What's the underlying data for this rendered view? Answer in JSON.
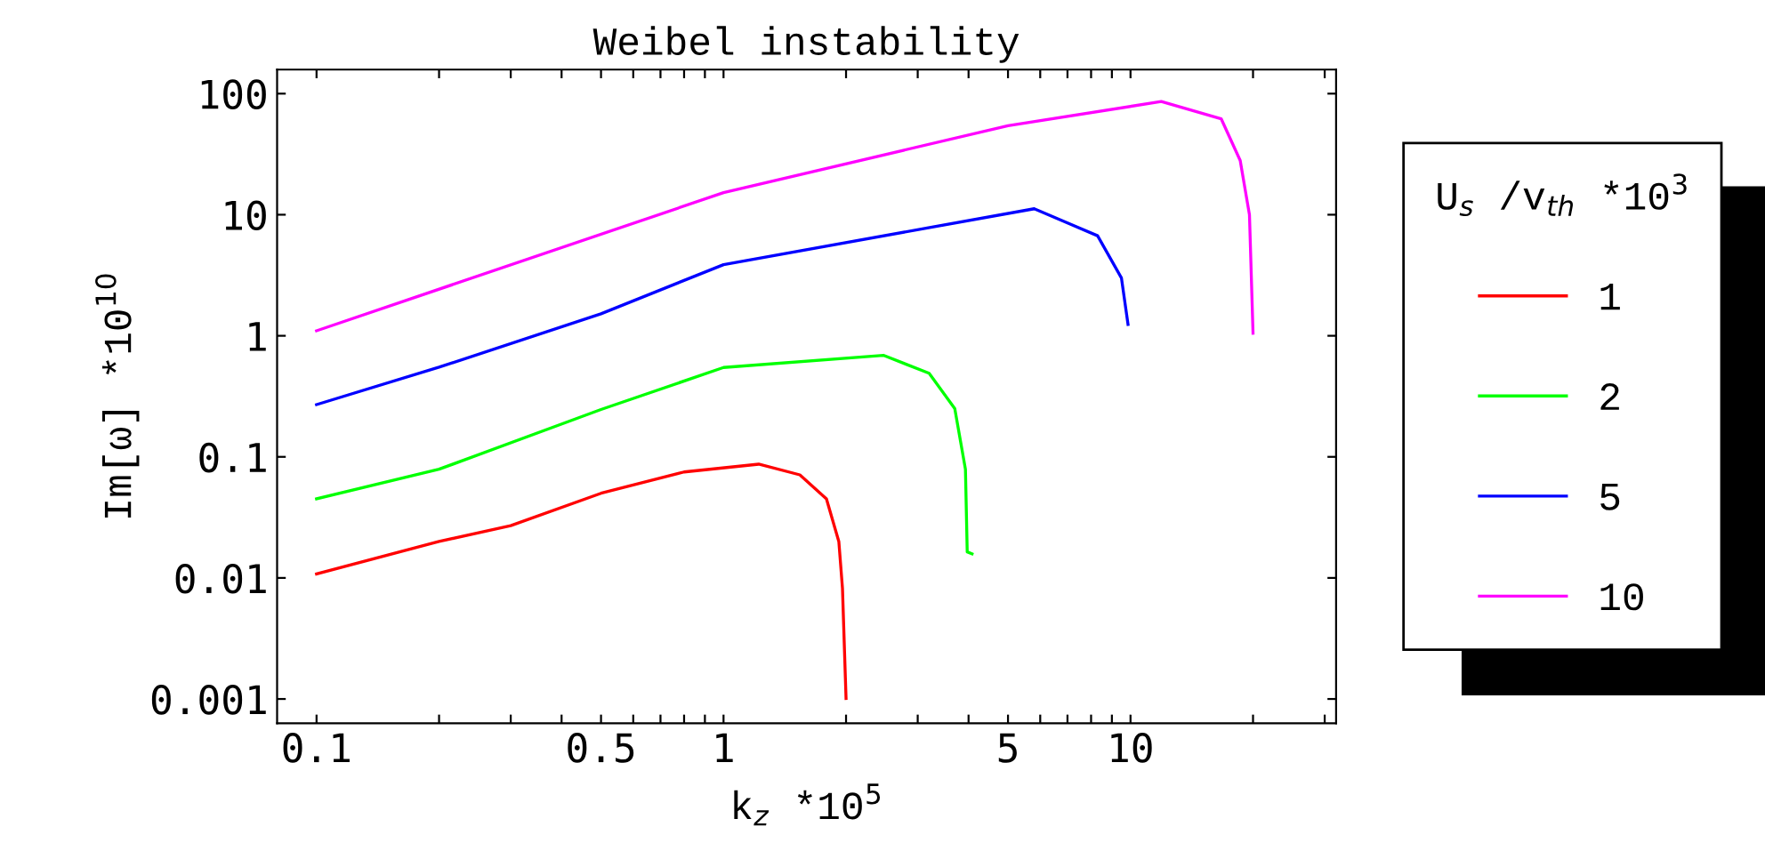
{
  "chart_data": {
    "type": "line",
    "title": "Weibel instability",
    "xlabel": "k$_{z}$ *10$^{5}$",
    "ylabel": "Im[ω] *10$^{10}$",
    "legend_title": "U$_{s}$ /v$_{th}$ *10$^{3}$",
    "log": "xy",
    "xlim": [
      0.08,
      32
    ],
    "ylim": [
      0.00063,
      158
    ],
    "xticks": [
      0.1,
      {
        "value": 0.2,
        "label": null
      },
      {
        "value": 0.3,
        "label": null
      },
      {
        "value": 0.4,
        "label": null
      },
      0.5,
      {
        "value": 0.6,
        "label": null
      },
      {
        "value": 0.7,
        "label": null
      },
      {
        "value": 0.8,
        "label": null
      },
      {
        "value": 0.9,
        "label": null
      },
      1,
      {
        "value": 2,
        "label": null
      },
      {
        "value": 3,
        "label": null
      },
      {
        "value": 4,
        "label": null
      },
      5,
      {
        "value": 6,
        "label": null
      },
      {
        "value": 7,
        "label": null
      },
      {
        "value": 8,
        "label": null
      },
      {
        "value": 9,
        "label": null
      },
      10,
      {
        "value": 20,
        "label": null
      },
      {
        "value": 30,
        "label": null
      }
    ],
    "yticks": [
      0.001,
      0.01,
      0.1,
      1,
      10,
      100
    ],
    "grid": false,
    "legend": "right",
    "marker": "none",
    "line_style": "solid",
    "series": [
      {
        "name": "1",
        "color": "#ff0000",
        "x": [
          0.1,
          0.2,
          0.3,
          0.5,
          0.8,
          1.22,
          1.54,
          1.79,
          1.92,
          1.96,
          2.0
        ],
        "values": [
          0.0108,
          0.02,
          0.027,
          0.05,
          0.075,
          0.087,
          0.071,
          0.045,
          0.02,
          0.0082,
          0.00101
        ]
      },
      {
        "name": "2",
        "color": "#00ff00",
        "x": [
          0.1,
          0.2,
          0.5,
          1,
          2.47,
          3.2,
          3.7,
          3.93,
          3.97,
          4.08
        ],
        "values": [
          0.045,
          0.079,
          0.246,
          0.547,
          0.69,
          0.49,
          0.25,
          0.079,
          0.0164,
          0.0158
        ]
      },
      {
        "name": "5",
        "color": "#0000ff",
        "x": [
          0.1,
          0.2,
          0.5,
          1,
          5.8,
          8.3,
          9.5,
          9.86
        ],
        "values": [
          0.27,
          0.55,
          1.52,
          3.87,
          11.2,
          6.7,
          3.0,
          1.24
        ]
      },
      {
        "name": "10",
        "color": "#ff00ff",
        "x": [
          0.1,
          1,
          5,
          11.9,
          16.7,
          18.6,
          19.6,
          20
        ],
        "values": [
          1.1,
          15.2,
          54.4,
          86,
          62,
          28,
          10,
          1.05
        ]
      }
    ]
  }
}
